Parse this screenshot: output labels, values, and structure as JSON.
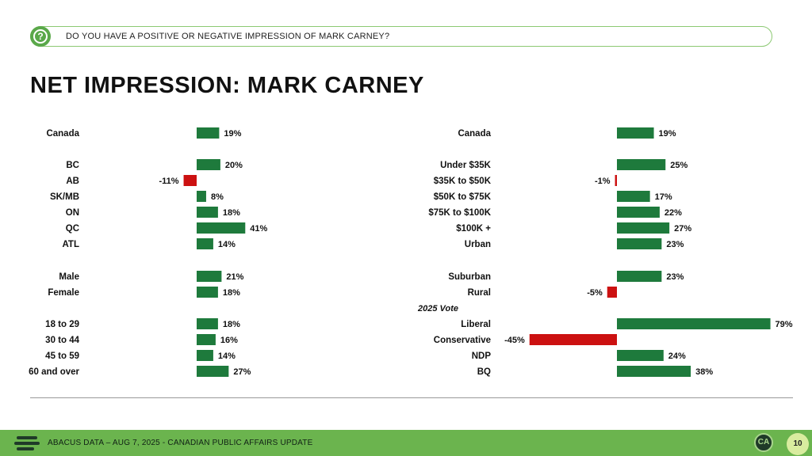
{
  "question": {
    "icon": "question-circle-icon",
    "text": "DO YOU HAVE A POSITIVE OR NEGATIVE IMPRESSION OF MARK CARNEY?"
  },
  "title": "NET IMPRESSION: MARK CARNEY",
  "colors": {
    "positive": "#1e7a3c",
    "negative": "#cc1111",
    "accent": "#6bb44e"
  },
  "chart_data": [
    {
      "type": "bar",
      "orientation": "horizontal",
      "title": "",
      "rows": [
        {
          "label": "Canada",
          "value": 19
        },
        {
          "label": "BC",
          "value": 20
        },
        {
          "label": "AB",
          "value": -11
        },
        {
          "label": "SK/MB",
          "value": 8
        },
        {
          "label": "ON",
          "value": 18
        },
        {
          "label": "QC",
          "value": 41
        },
        {
          "label": "ATL",
          "value": 14
        },
        {
          "label": "Male",
          "value": 21
        },
        {
          "label": "Female",
          "value": 18
        },
        {
          "label": "18 to 29",
          "value": 18
        },
        {
          "label": "30 to 44",
          "value": 16
        },
        {
          "label": "45 to 59",
          "value": 14
        },
        {
          "label": "60 and over",
          "value": 27
        }
      ]
    },
    {
      "type": "bar",
      "orientation": "horizontal",
      "title": "",
      "rows": [
        {
          "label": "Canada",
          "value": 19
        },
        {
          "label": "Under $35K",
          "value": 25
        },
        {
          "label": "$35K to $50K",
          "value": -1
        },
        {
          "label": "$50K to $75K",
          "value": 17
        },
        {
          "label": "$75K to $100K",
          "value": 22
        },
        {
          "label": "$100K +",
          "value": 27
        },
        {
          "label": "Urban",
          "value": 23
        },
        {
          "label": "Suburban",
          "value": 23
        },
        {
          "label": "Rural",
          "value": -5
        },
        {
          "label": "Liberal",
          "value": 79
        },
        {
          "label": "Conservative",
          "value": -45
        },
        {
          "label": "NDP",
          "value": 24
        },
        {
          "label": "BQ",
          "value": 38
        }
      ],
      "subheading": "2025 Vote"
    }
  ],
  "footer": {
    "logo_icon": "abacus-logo-icon",
    "text": "ABACUS DATA – AUG 7, 2025 - CANADIAN PUBLIC AFFAIRS UPDATE",
    "badge_icon": "ca-badge-icon",
    "badge_text": "CA",
    "page_number": "10"
  }
}
